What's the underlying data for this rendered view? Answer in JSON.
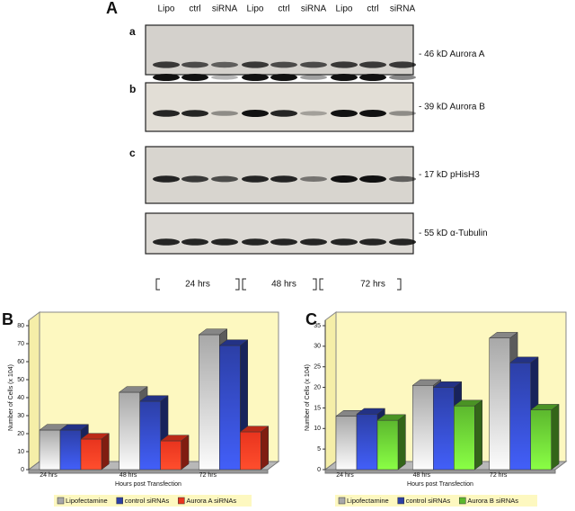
{
  "blots": {
    "panel_label": "A",
    "lanes": [
      "Lipo",
      "ctrl",
      "siRNA",
      "Lipo",
      "ctrl",
      "siRNA",
      "Lipo",
      "ctrl",
      "siRNA"
    ],
    "rows": [
      {
        "letter": "a",
        "marker": "- 46 kD Aurora A"
      },
      {
        "letter": "b",
        "marker": "- 39 kD Aurora B"
      },
      {
        "letter": "c",
        "marker": "- 17 kD pHisH3"
      },
      {
        "marker": "- 55 kD α-Tubulin"
      }
    ],
    "timepoints": [
      "24 hrs",
      "48 hrs",
      "72 hrs"
    ]
  },
  "chart_data": [
    {
      "type": "bar",
      "panel_label": "B",
      "y_label": "Number of Cells (x 104)",
      "x_label": "Hours post Transfection",
      "categories": [
        "24 hrs",
        "48 hrs",
        "72 hrs"
      ],
      "series": [
        {
          "name": "Lipofectamine",
          "color": "#a8a8a8",
          "values": [
            22,
            43,
            75
          ]
        },
        {
          "name": "control siRNAs",
          "color": "#2c3fa6",
          "values": [
            22,
            38,
            69
          ]
        },
        {
          "name": "Aurora A siRNAs",
          "color": "#e8341e",
          "values": [
            17,
            16,
            21
          ]
        }
      ],
      "ylim": [
        0,
        80
      ],
      "yticks": [
        0,
        10,
        20,
        30,
        40,
        50,
        60,
        70,
        80
      ],
      "legend": "bottom"
    },
    {
      "type": "bar",
      "panel_label": "C",
      "y_label": "Number of Cells (x 104)",
      "x_label": "Hours post Transfection",
      "categories": [
        "24 hrs",
        "48 hrs",
        "72 hrs"
      ],
      "series": [
        {
          "name": "Lipofectamine",
          "color": "#a8a8a8",
          "values": [
            13,
            20.5,
            32
          ]
        },
        {
          "name": "control siRNAs",
          "color": "#2c3fa6",
          "values": [
            13.5,
            20,
            26
          ]
        },
        {
          "name": "Aurora B siRNAs",
          "color": "#5cb82e",
          "values": [
            12,
            15.5,
            14.5
          ]
        }
      ],
      "ylim": [
        0,
        35
      ],
      "yticks": [
        0,
        5,
        10,
        15,
        20,
        25,
        30,
        35
      ],
      "legend": "bottom"
    }
  ]
}
